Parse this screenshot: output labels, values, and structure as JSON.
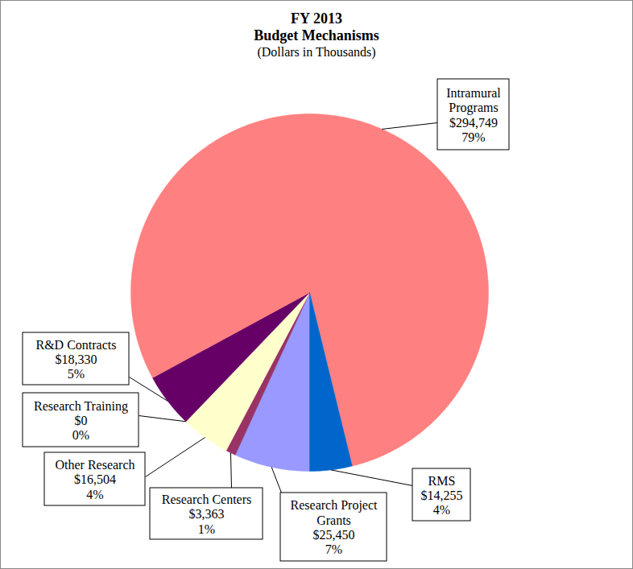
{
  "chart_data": {
    "type": "pie",
    "title": "FY 2013\nBudget Mechanisms",
    "subtitle": "(Dollars in Thousands)",
    "categories": [
      "Research Project\nGrants",
      "Research Centers",
      "Other Research",
      "Research Training",
      "R&D Contracts",
      "Intramural\nPrograms",
      "RMS"
    ],
    "values": [
      25450,
      3363,
      16504,
      0,
      18330,
      294749,
      14255
    ],
    "value_labels": [
      "$25,450",
      "$3,363",
      "$16,504",
      "$0",
      "$18,330",
      "$294,749",
      "$14,255"
    ],
    "percentages": [
      7,
      1,
      4,
      0,
      5,
      79,
      4
    ],
    "percentage_labels": [
      "7%",
      "1%",
      "4%",
      "0%",
      "5%",
      "79%",
      "4%"
    ],
    "colors": [
      "#9999ff",
      "#993366",
      "#ffffcc",
      "#ccffff",
      "#660066",
      "#ff8080",
      "#0066cc"
    ],
    "data_labels": true
  }
}
